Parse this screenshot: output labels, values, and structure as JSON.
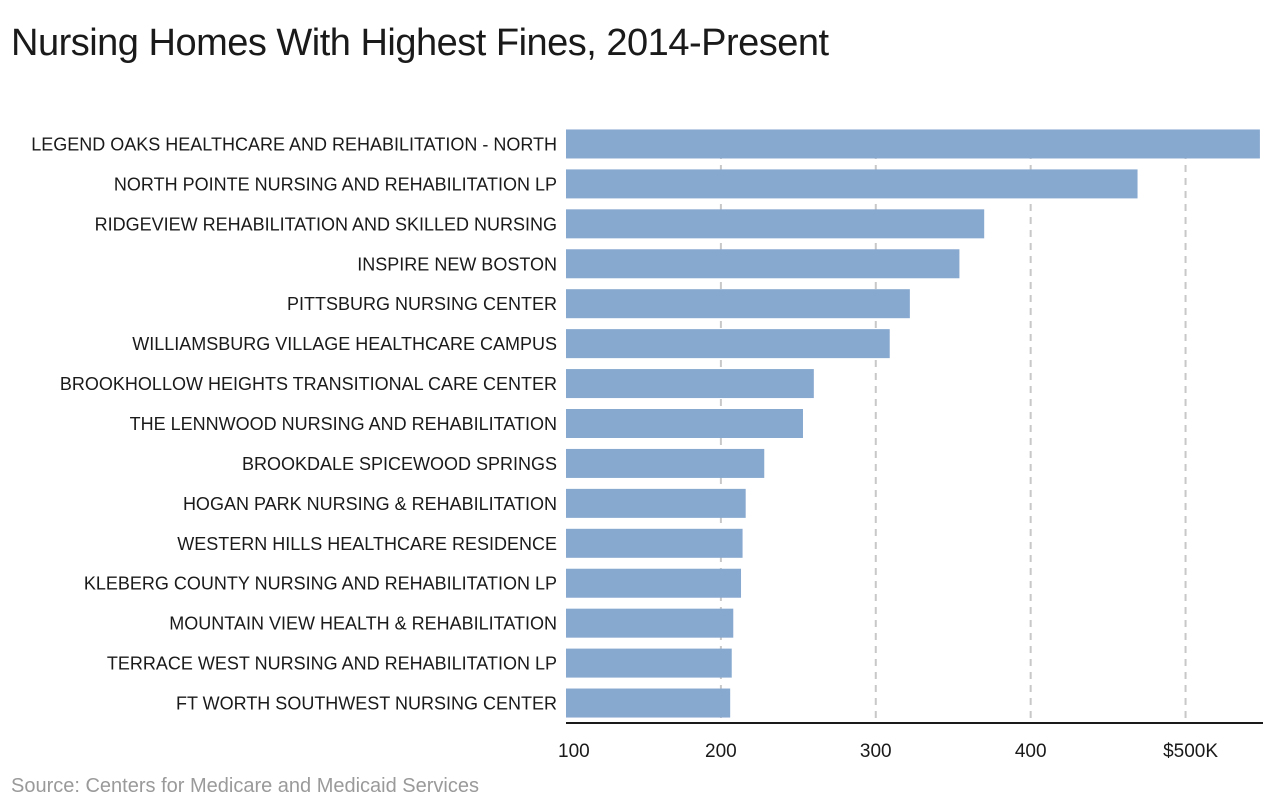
{
  "chart_data": {
    "type": "bar",
    "orientation": "horizontal",
    "title": "Nursing Homes With Highest Fines, 2014-Present",
    "source": "Source: Centers for Medicare and Medicaid Services",
    "categories": [
      "LEGEND OAKS HEALTHCARE AND REHABILITATION - NORTH",
      "NORTH POINTE NURSING AND REHABILITATION LP",
      "RIDGEVIEW REHABILITATION AND SKILLED NURSING",
      "INSPIRE NEW BOSTON",
      "PITTSBURG NURSING CENTER",
      "WILLIAMSBURG VILLAGE HEALTHCARE CAMPUS",
      "BROOKHOLLOW HEIGHTS TRANSITIONAL CARE CENTER",
      "THE LENNWOOD NURSING AND REHABILITATION",
      "BROOKDALE SPICEWOOD SPRINGS",
      "HOGAN PARK NURSING & REHABILITATION",
      "WESTERN HILLS HEALTHCARE RESIDENCE",
      "KLEBERG COUNTY NURSING AND REHABILITATION LP",
      "MOUNTAIN VIEW HEALTH & REHABILITATION",
      "TERRACE WEST NURSING AND REHABILITATION LP",
      "FT WORTH SOUTHWEST NURSING CENTER"
    ],
    "values": [
      548,
      469,
      370,
      354,
      322,
      309,
      260,
      253,
      228,
      216,
      214,
      213,
      208,
      207,
      206
    ],
    "unit": "thousands of dollars",
    "xlim": [
      100,
      550
    ],
    "xticks": [
      100,
      200,
      300,
      400,
      500
    ],
    "xtick_labels": [
      "100",
      "200",
      "300",
      "400",
      "$500K"
    ],
    "grid": "vertical dashed",
    "bar_color": "#87a8cf",
    "axis_color": "#1a1a1a",
    "grid_color": "#c8c8c8"
  }
}
